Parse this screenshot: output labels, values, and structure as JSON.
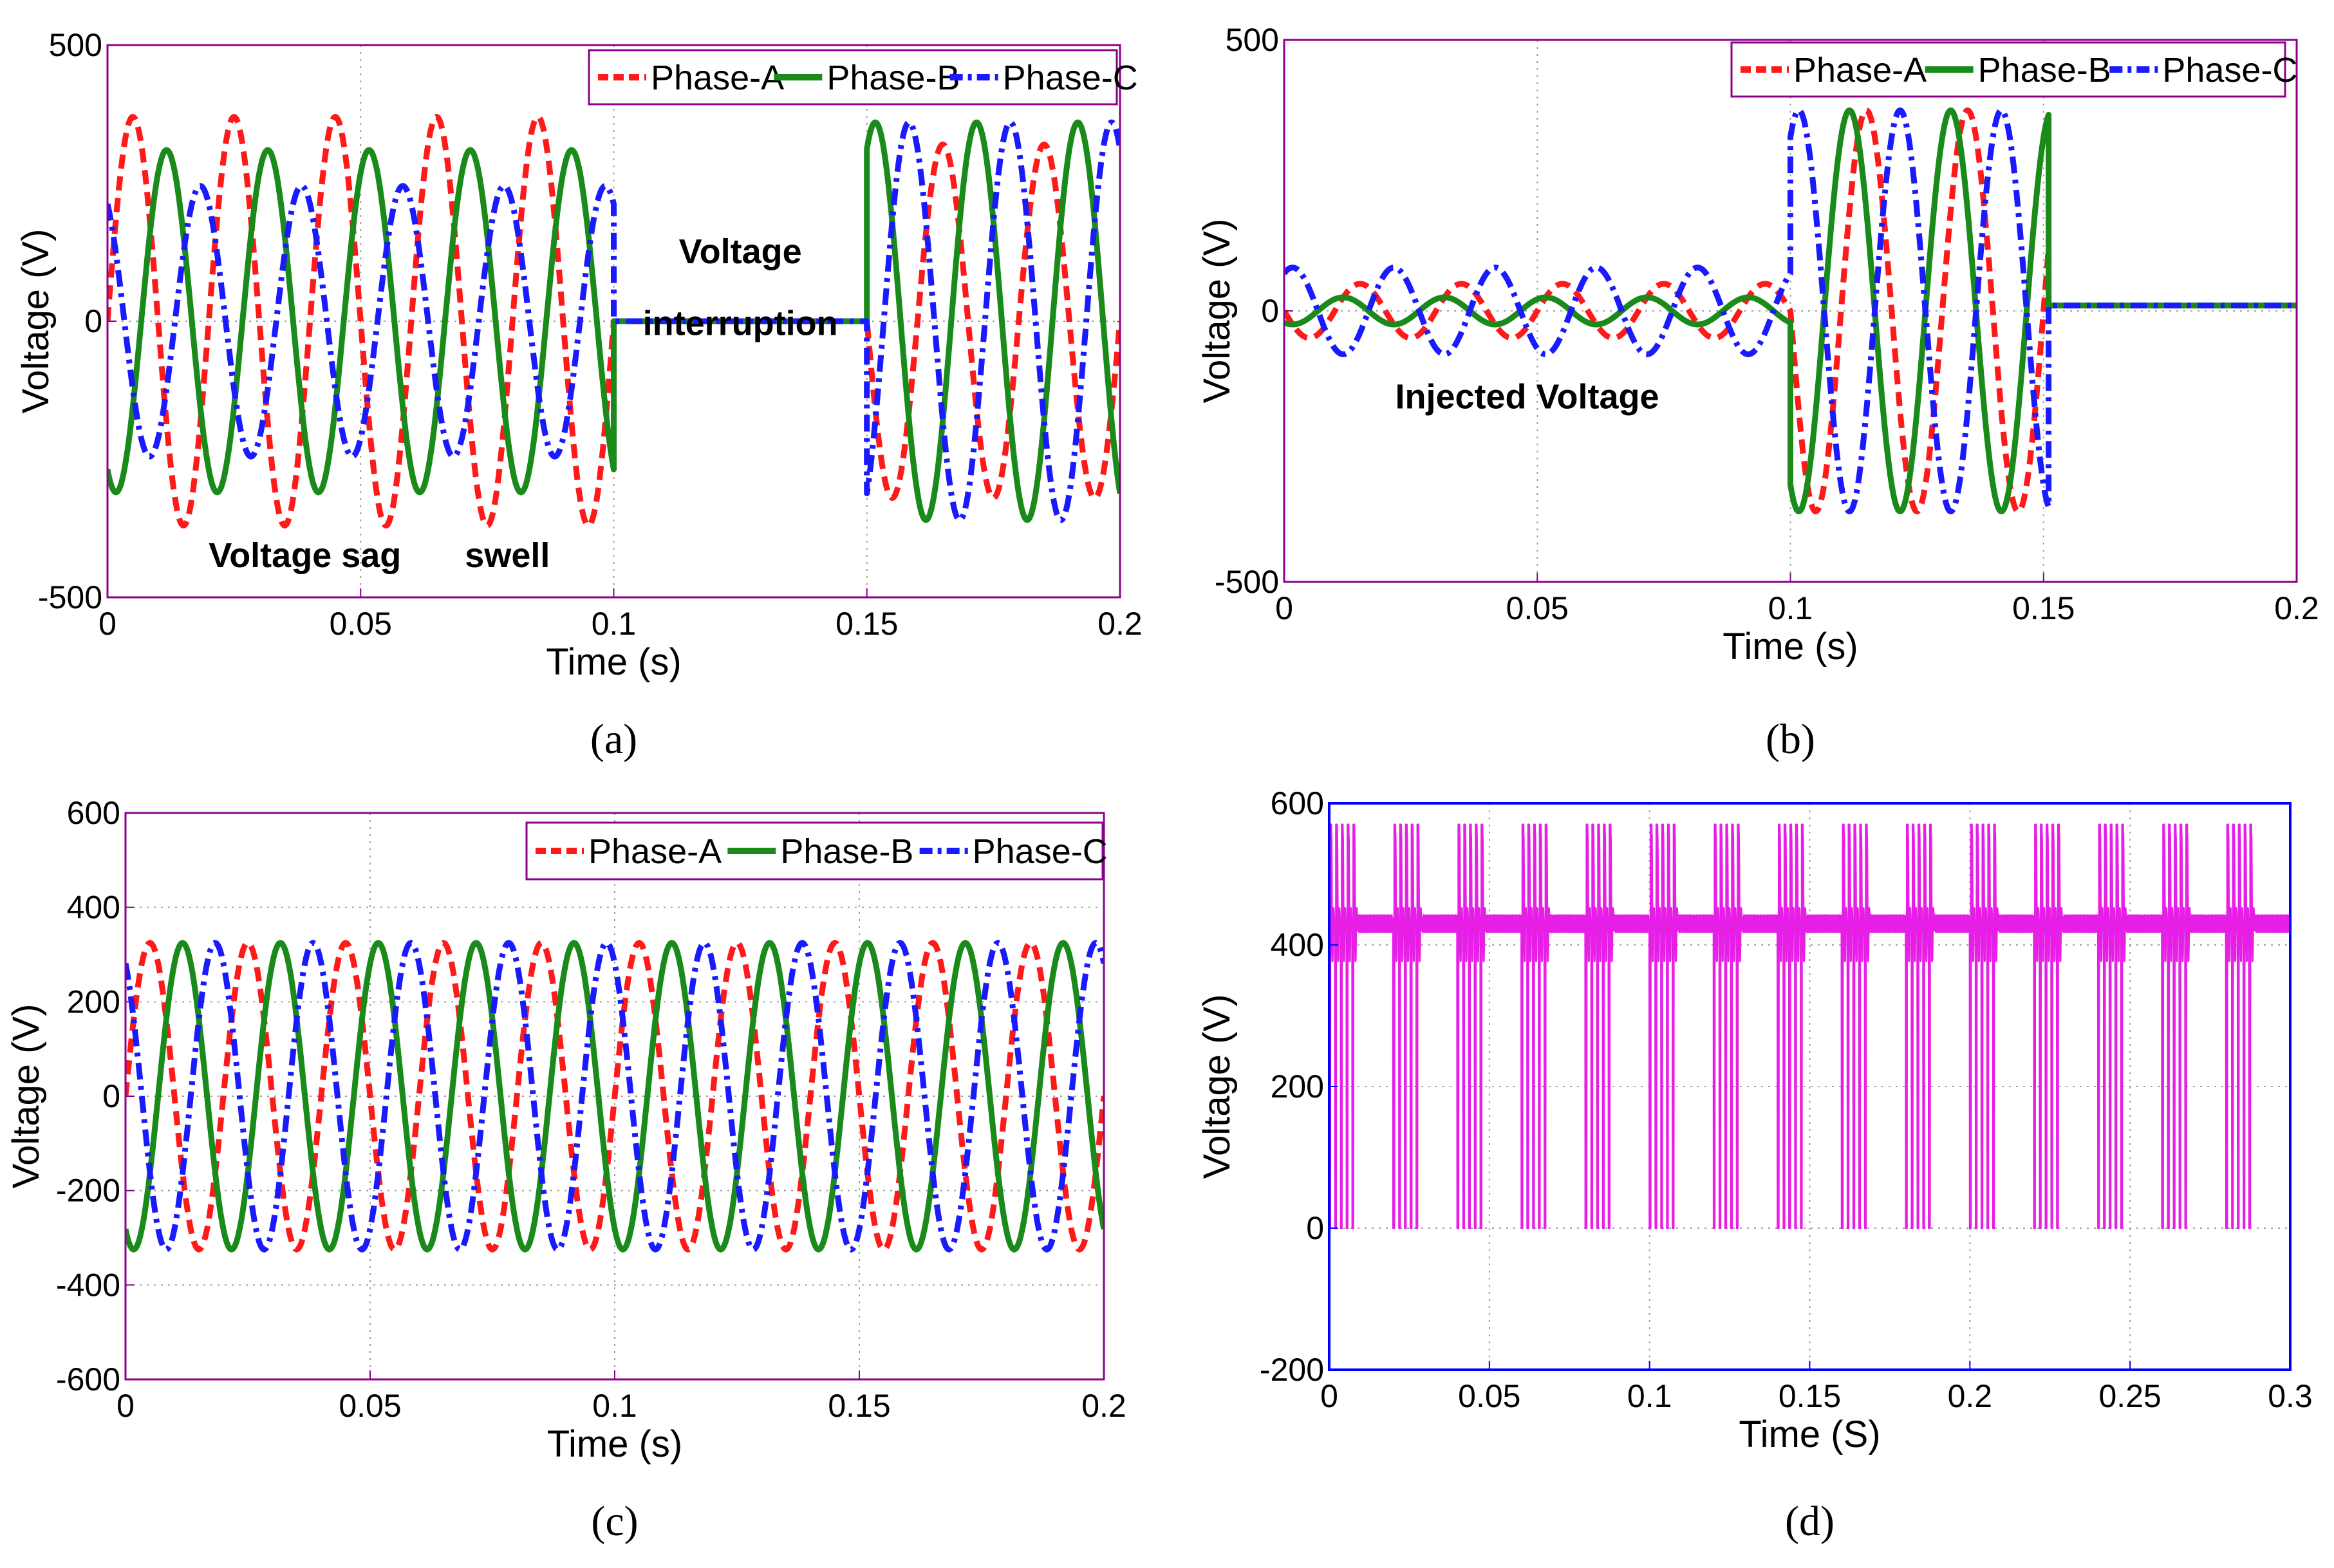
{
  "chart_data": [
    {
      "panel": "a",
      "caption": "(a)",
      "type": "line",
      "xlabel": "Time (s)",
      "ylabel": "Voltage (V)",
      "xlim": [
        0,
        0.2
      ],
      "ylim": [
        -500,
        500
      ],
      "xticks": [
        "0",
        "0.05",
        "0.1",
        "0.15",
        "0.2"
      ],
      "yticks": [
        "500",
        "0",
        "-500"
      ],
      "ytick_values": [
        500,
        0,
        -500
      ],
      "xtick_values": [
        0,
        0.05,
        0.1,
        0.15,
        0.2
      ],
      "frequency_hz": 50,
      "grid": true,
      "legend_position": "top-right",
      "annotations": [
        {
          "text": "Voltage sag",
          "x": 0.039,
          "y": -445
        },
        {
          "text": "swell",
          "x": 0.079,
          "y": -445
        },
        {
          "text": "Voltage",
          "x": 0.125,
          "y": 105
        },
        {
          "text": "interruption",
          "x": 0.125,
          "y": -25
        }
      ],
      "series": [
        {
          "name": "Phase-A",
          "color": "#ff1a1a",
          "style": "dashed",
          "phase_deg": 0,
          "segments": [
            {
              "t0": 0,
              "t1": 0.1,
              "amp": 370
            },
            {
              "t0": 0.1,
              "t1": 0.15,
              "amp": 0
            },
            {
              "t0": 0.15,
              "t1": 0.2,
              "amp": 320
            }
          ]
        },
        {
          "name": "Phase-B",
          "color": "#1a8a1a",
          "style": "solid",
          "phase_deg": -120,
          "segments": [
            {
              "t0": 0,
              "t1": 0.1,
              "amp": 310
            },
            {
              "t0": 0.1,
              "t1": 0.15,
              "amp": 0
            },
            {
              "t0": 0.15,
              "t1": 0.2,
              "amp": 360
            }
          ]
        },
        {
          "name": "Phase-C",
          "color": "#1a1aff",
          "style": "dashdot",
          "phase_deg": 120,
          "segments": [
            {
              "t0": 0,
              "t1": 0.1,
              "amp": 245
            },
            {
              "t0": 0.1,
              "t1": 0.15,
              "amp": 0
            },
            {
              "t0": 0.15,
              "t1": 0.2,
              "amp": 360
            }
          ]
        }
      ]
    },
    {
      "panel": "b",
      "caption": "(b)",
      "type": "line",
      "xlabel": "Time (s)",
      "ylabel": "Voltage (V)",
      "xlim": [
        0,
        0.2
      ],
      "ylim": [
        -500,
        500
      ],
      "xticks": [
        "0",
        "0.05",
        "0.1",
        "0.15",
        "0.2"
      ],
      "yticks": [
        "500",
        "0",
        "-500"
      ],
      "ytick_values": [
        500,
        0,
        -500
      ],
      "xtick_values": [
        0,
        0.05,
        0.1,
        0.15,
        0.2
      ],
      "frequency_hz": 50,
      "grid": true,
      "legend_position": "top-right",
      "annotations": [
        {
          "text": "Injected Voltage",
          "x": 0.048,
          "y": -180
        }
      ],
      "series": [
        {
          "name": "Phase-A",
          "color": "#ff1a1a",
          "style": "dashed",
          "phase_deg": 180,
          "segments": [
            {
              "t0": 0,
              "t1": 0.1,
              "amp": 50
            },
            {
              "t0": 0.1,
              "t1": 0.151,
              "amp": 370
            },
            {
              "t0": 0.151,
              "t1": 0.2,
              "amp": 0,
              "offset": 10
            }
          ]
        },
        {
          "name": "Phase-B",
          "color": "#1a8a1a",
          "style": "solid",
          "phase_deg": -120,
          "segments": [
            {
              "t0": 0,
              "t1": 0.1,
              "amp": 25
            },
            {
              "t0": 0.1,
              "t1": 0.151,
              "amp": 370
            },
            {
              "t0": 0.151,
              "t1": 0.2,
              "amp": 0,
              "offset": 10
            }
          ]
        },
        {
          "name": "Phase-C",
          "color": "#1a1aff",
          "style": "dashdot",
          "phase_deg": 60,
          "segments": [
            {
              "t0": 0,
              "t1": 0.1,
              "amp": 80
            },
            {
              "t0": 0.1,
              "t1": 0.151,
              "amp": 370
            },
            {
              "t0": 0.151,
              "t1": 0.2,
              "amp": 0,
              "offset": 10
            }
          ]
        }
      ]
    },
    {
      "panel": "c",
      "caption": "(c)",
      "type": "line",
      "xlabel": "Time (s)",
      "ylabel": "Voltage (V)",
      "xlim": [
        0,
        0.2
      ],
      "ylim": [
        -600,
        600
      ],
      "xticks": [
        "0",
        "0.05",
        "0.1",
        "0.15",
        "0.2"
      ],
      "yticks": [
        "600",
        "400",
        "200",
        "0",
        "-200",
        "-400",
        "-600"
      ],
      "ytick_values": [
        600,
        400,
        200,
        0,
        -200,
        -400,
        -600
      ],
      "xtick_values": [
        0,
        0.05,
        0.1,
        0.15,
        0.2
      ],
      "frequency_hz": 50,
      "grid": true,
      "legend_position": "top-right",
      "annotations": [],
      "series": [
        {
          "name": "Phase-A",
          "color": "#ff1a1a",
          "style": "dashed",
          "phase_deg": 0,
          "segments": [
            {
              "t0": 0,
              "t1": 0.2,
              "amp": 325
            }
          ]
        },
        {
          "name": "Phase-B",
          "color": "#1a8a1a",
          "style": "solid",
          "phase_deg": -120,
          "segments": [
            {
              "t0": 0,
              "t1": 0.2,
              "amp": 325
            }
          ]
        },
        {
          "name": "Phase-C",
          "color": "#1a1aff",
          "style": "dashdot",
          "phase_deg": 120,
          "segments": [
            {
              "t0": 0,
              "t1": 0.2,
              "amp": 325
            }
          ]
        }
      ]
    },
    {
      "panel": "d",
      "caption": "(d)",
      "type": "line",
      "xlabel": "Time (S)",
      "ylabel": "Voltage (V)",
      "xlim": [
        0,
        0.3
      ],
      "ylim": [
        -200,
        600
      ],
      "xticks": [
        "0",
        "0.05",
        "0.1",
        "0.15",
        "0.2",
        "0.25",
        "0.3"
      ],
      "yticks": [
        "600",
        "400",
        "200",
        "0",
        "-200"
      ],
      "ytick_values": [
        600,
        400,
        200,
        0,
        -200
      ],
      "xtick_values": [
        0,
        0.05,
        0.1,
        0.15,
        0.2,
        0.25,
        0.3
      ],
      "grid": true,
      "annotations": [],
      "series": [
        {
          "color": "#e61ee6",
          "style": "solid",
          "waveform": {
            "baseline": 430,
            "peak": 570,
            "trough": 0,
            "burst_period": 0.02,
            "pulses_per_burst": 5,
            "pulse_spacing": 0.0018
          }
        }
      ]
    }
  ],
  "colors": {
    "axes_frame_a_b_c": "#8b008b",
    "axes_frame_d": "#0000ff",
    "grid": "#a0a0a0",
    "legend_border": "#8b008b"
  }
}
